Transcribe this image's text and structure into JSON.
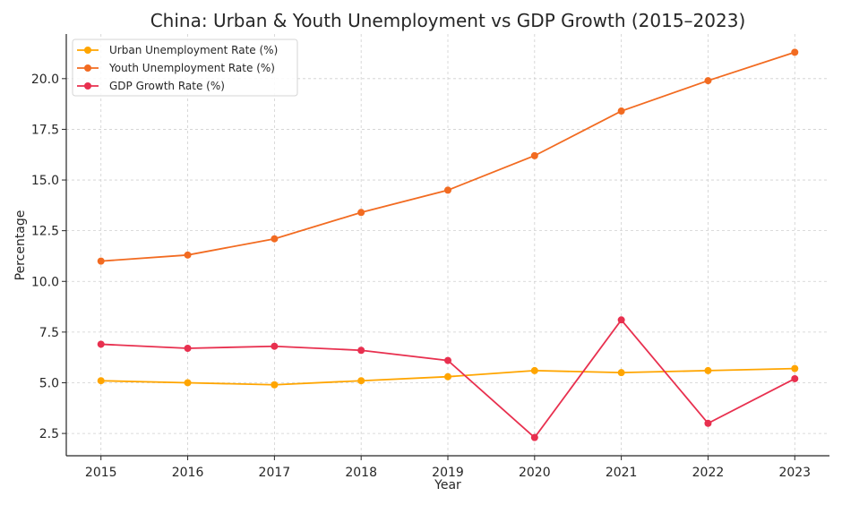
{
  "chart_data": {
    "type": "line",
    "title": "China: Urban & Youth Unemployment vs GDP Growth (2015–2023)",
    "xlabel": "Year",
    "ylabel": "Percentage",
    "x": [
      2015,
      2016,
      2017,
      2018,
      2019,
      2020,
      2021,
      2022,
      2023
    ],
    "x_tick_labels": [
      "2015",
      "2016",
      "2017",
      "2018",
      "2019",
      "2020",
      "2021",
      "2022",
      "2023"
    ],
    "y_ticks": [
      2.5,
      5.0,
      7.5,
      10.0,
      12.5,
      15.0,
      17.5,
      20.0
    ],
    "y_tick_labels": [
      "2.5",
      "5.0",
      "7.5",
      "10.0",
      "12.5",
      "15.0",
      "17.5",
      "20.0"
    ],
    "ylim": [
      1.4,
      22.2
    ],
    "xlim": [
      2014.6,
      2023.4
    ],
    "grid": true,
    "legend_position": "top-left",
    "series": [
      {
        "name": "Urban Unemployment Rate (%)",
        "color": "#FFA500",
        "values": [
          5.1,
          5.0,
          4.9,
          5.1,
          5.3,
          5.6,
          5.5,
          5.6,
          5.7
        ]
      },
      {
        "name": "Youth Unemployment Rate (%)",
        "color": "#F26B21",
        "values": [
          11.0,
          11.3,
          12.1,
          13.4,
          14.5,
          16.2,
          18.4,
          19.9,
          21.3
        ]
      },
      {
        "name": "GDP Growth Rate (%)",
        "color": "#E8304F",
        "values": [
          6.9,
          6.7,
          6.8,
          6.6,
          6.1,
          2.3,
          8.1,
          3.0,
          5.2
        ]
      }
    ]
  }
}
